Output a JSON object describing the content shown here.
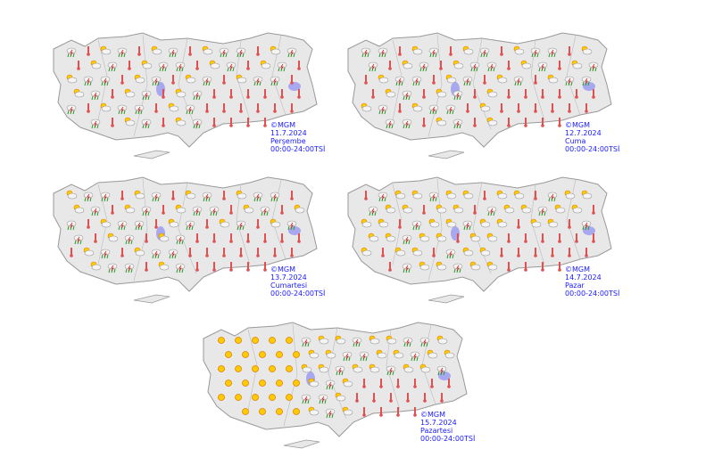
{
  "maps": [
    {
      "copyright": "©MGM",
      "date": "11.7.2024",
      "day": "Perşembe",
      "hours": "00:00-24:00TSİ"
    },
    {
      "copyright": "©MGM",
      "date": "12.7.2024",
      "day": "Cuma",
      "hours": "00:00-24:00TSİ"
    },
    {
      "copyright": "©MGM",
      "date": "13.7.2024",
      "day": "Cumartesi",
      "hours": "00:00-24:00TSİ"
    },
    {
      "copyright": "©MGM",
      "date": "14.7.2024",
      "day": "Pazar",
      "hours": "00:00-24:00TSİ"
    },
    {
      "copyright": "©MGM",
      "date": "15.7.2024",
      "day": "Pazartesi",
      "hours": "00:00-24:00TSİ"
    }
  ]
}
